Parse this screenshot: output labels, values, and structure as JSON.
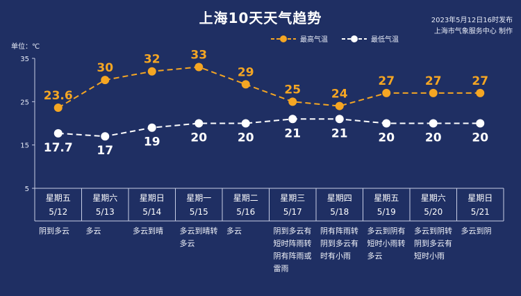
{
  "header": {
    "title": "上海10天天气趋势",
    "issued_line1": "2023年5月12日16时发布",
    "issued_line2": "上海市气象服务中心 制作"
  },
  "chart_data": {
    "type": "line",
    "unit_label": "单位：℃",
    "ylim": [
      5,
      35
    ],
    "yticks": [
      35,
      25,
      15,
      5
    ],
    "grid": false,
    "legend_position": "top-right",
    "days": [
      {
        "weekday": "星期五",
        "date": "5/12",
        "desc": "阴到多云"
      },
      {
        "weekday": "星期六",
        "date": "5/13",
        "desc": "多云"
      },
      {
        "weekday": "星期日",
        "date": "5/14",
        "desc": "多云到晴"
      },
      {
        "weekday": "星期一",
        "date": "5/15",
        "desc": "多云到晴转多云"
      },
      {
        "weekday": "星期二",
        "date": "5/16",
        "desc": "多云"
      },
      {
        "weekday": "星期三",
        "date": "5/17",
        "desc": "阴到多云有短时阵雨转阴有阵雨或雷雨"
      },
      {
        "weekday": "星期四",
        "date": "5/18",
        "desc": "阴有阵雨转阴到多云有时有小雨"
      },
      {
        "weekday": "星期五",
        "date": "5/19",
        "desc": "多云到阴有短时小雨转多云"
      },
      {
        "weekday": "星期六",
        "date": "5/20",
        "desc": "多云到阴转阴到多云有短时小雨"
      },
      {
        "weekday": "星期日",
        "date": "5/21",
        "desc": "多云到阴"
      }
    ],
    "series": [
      {
        "name": "最高气温",
        "color": "#f5a623",
        "values": [
          23.6,
          30,
          32,
          33,
          29,
          25,
          24,
          27,
          27,
          27
        ],
        "labels": [
          "23.6",
          "30",
          "32",
          "33",
          "29",
          "25",
          "24",
          "27",
          "27",
          "27"
        ]
      },
      {
        "name": "最低气温",
        "color": "#ffffff",
        "values": [
          17.7,
          17,
          19,
          20,
          20,
          21,
          21,
          20,
          20,
          20
        ],
        "labels": [
          "17.7",
          "17",
          "19",
          "20",
          "20",
          "21",
          "21",
          "20",
          "20",
          "20"
        ]
      }
    ]
  }
}
